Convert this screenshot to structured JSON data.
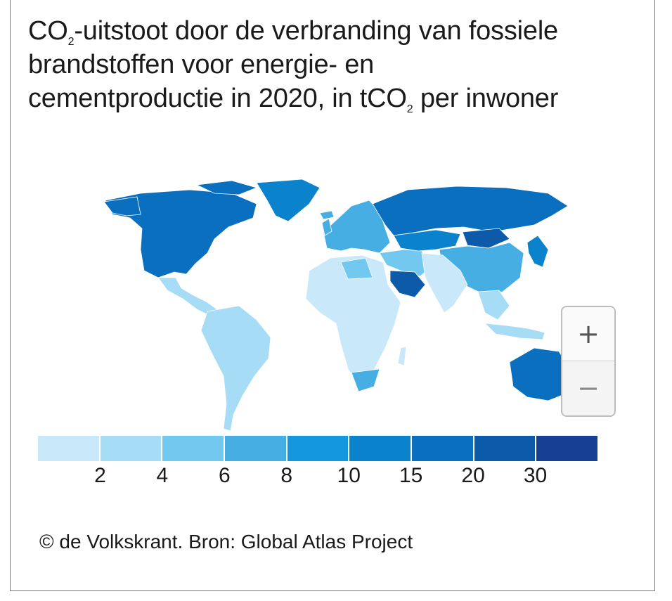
{
  "title": {
    "part1": "CO",
    "sub1": "2",
    "part2": "-uitstoot door de verbranding van fossiele brandstoffen voor energie- en cementproductie in 2020, in tCO",
    "sub2": "2",
    "part3": " per inwoner"
  },
  "zoom": {
    "in_label": "+",
    "out_label": "−"
  },
  "legend": {
    "colors": [
      "#c9e8f9",
      "#a6dcf5",
      "#72c8ef",
      "#46aee3",
      "#1597dd",
      "#0a82cc",
      "#0a6fbe",
      "#0d5aa9",
      "#173f93"
    ],
    "ticks": [
      "2",
      "4",
      "6",
      "8",
      "10",
      "15",
      "20",
      "30"
    ]
  },
  "source": "© de Volkskrant. Bron: Global Atlas Project",
  "regions": {
    "north_america": "#0a6fbe",
    "greenland": "#0a82cc",
    "central_america": "#a6dcf5",
    "south_america": "#a6dcf5",
    "europe": "#46aee3",
    "russia": "#0a6fbe",
    "middle_east": "#72c8ef",
    "saudi_arabia": "#0d5aa9",
    "africa": "#c9e8f9",
    "south_africa": "#46aee3",
    "central_asia": "#0a82cc",
    "mongolia": "#0d5aa9",
    "china": "#46aee3",
    "south_asia": "#c9e8f9",
    "southeast_asia": "#a6dcf5",
    "japan_korea": "#0a82cc",
    "australia": "#0a6fbe",
    "new_zealand": "#72c8ef"
  }
}
